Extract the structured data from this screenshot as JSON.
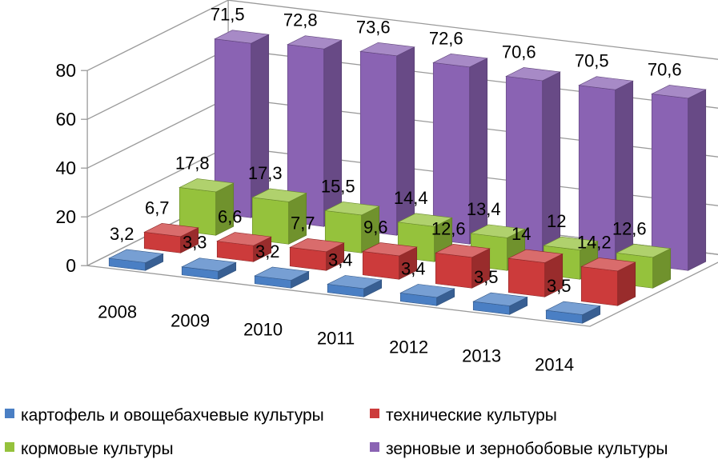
{
  "chart_data": {
    "type": "bar",
    "style": "3d-clustered-column",
    "categories": [
      "2008",
      "2009",
      "2010",
      "2011",
      "2012",
      "2013",
      "2014"
    ],
    "series": [
      {
        "name": "картофель и овощебахчевые культуры",
        "color": "#4a7fc4",
        "values": [
          3.2,
          3.3,
          3.2,
          3.4,
          3.4,
          3.5,
          3.5
        ],
        "labels": [
          "3,2",
          "3,3",
          "3,2",
          "3,4",
          "3,4",
          "3,5",
          "3,5"
        ]
      },
      {
        "name": "технические культуры",
        "color": "#cc3b3b",
        "values": [
          6.7,
          6.6,
          7.7,
          9.6,
          12.6,
          14,
          14.2
        ],
        "labels": [
          "6,7",
          "6,6",
          "7,7",
          "9,6",
          "12,6",
          "14",
          "14,2"
        ]
      },
      {
        "name": "кормовые культуры",
        "color": "#95c23c",
        "values": [
          17.8,
          17.3,
          15.5,
          14.4,
          13.4,
          12,
          12.6
        ],
        "labels": [
          "17,8",
          "17,3",
          "15,5",
          "14,4",
          "13,4",
          "12",
          "12,6"
        ]
      },
      {
        "name": "зерновые и зернобобовые культуры",
        "color": "#8a63b3",
        "values": [
          71.5,
          72.8,
          73.6,
          72.6,
          70.6,
          70.5,
          70.6
        ],
        "labels": [
          "71,5",
          "72,8",
          "73,6",
          "72,6",
          "70,6",
          "70,5",
          "70,6"
        ]
      }
    ],
    "y_ticks": [
      "0",
      "20",
      "40",
      "60",
      "80"
    ],
    "ylim": [
      0,
      80
    ],
    "grid": true,
    "legend_position": "bottom"
  }
}
